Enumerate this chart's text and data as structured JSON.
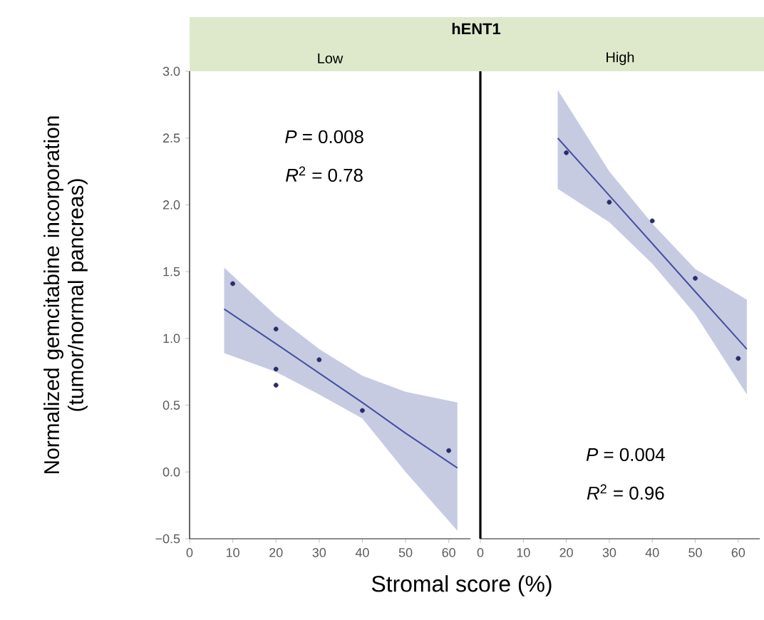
{
  "chart_data": [
    {
      "type": "scatter",
      "title": "hENT1",
      "subtitle": "Low",
      "xlabel": "Stromal score (%)",
      "ylabel": "Normalized gemcitabine incorporation (tumor/normal pancreas)",
      "annotations": [
        "*P* = 0.008",
        "*R*$^{2}$ = 0.78"
      ],
      "xlim": [
        0,
        65
      ],
      "xticks": [
        0,
        10,
        20,
        30,
        40,
        50,
        60
      ],
      "ylim": [
        -0.5,
        3.0
      ],
      "yticks": [
        {
          "value": -0.5,
          "label": "−0.5"
        },
        {
          "value": 0,
          "label": "0.0"
        },
        {
          "value": 0.5,
          "label": "0.5"
        },
        {
          "value": 1,
          "label": "1.0"
        },
        {
          "value": 1.5,
          "label": "1.5"
        },
        {
          "value": 2,
          "label": "2.0"
        },
        {
          "value": 2.5,
          "label": "2.5"
        },
        {
          "value": 3,
          "label": "3.0"
        }
      ],
      "series": [
        {
          "type": "line",
          "color": "#4450a0",
          "x": [
            8,
            20,
            30,
            40,
            50,
            62
          ],
          "values": [
            1.22,
            0.96,
            0.74,
            0.52,
            0.29,
            0.03
          ],
          "lower": [
            0.89,
            0.75,
            0.58,
            0.4,
            0.0,
            -0.44
          ],
          "upper": [
            1.53,
            1.17,
            0.92,
            0.72,
            0.6,
            0.52
          ]
        },
        {
          "color": "#2a2d6a",
          "marker": "circle",
          "x": [
            10,
            20,
            20,
            20,
            30,
            40,
            60
          ],
          "values": [
            1.41,
            1.07,
            0.77,
            0.65,
            0.84,
            0.46,
            0.16
          ]
        }
      ]
    },
    {
      "type": "scatter",
      "subtitle": "High",
      "annotations": [
        "*P* = 0.004",
        "*R*$^{2}$ = 0.96"
      ],
      "tick_labels": "x",
      "xlim": [
        0,
        65
      ],
      "xticks": [
        0,
        10,
        20,
        30,
        40,
        50,
        60
      ],
      "ylim": [
        -0.5,
        3.0
      ],
      "series": [
        {
          "type": "line",
          "color": "#4450a0",
          "x": [
            18,
            30,
            40,
            50,
            62
          ],
          "values": [
            2.5,
            2.07,
            1.71,
            1.35,
            0.92
          ],
          "lower": [
            2.12,
            1.87,
            1.56,
            1.18,
            0.58
          ],
          "upper": [
            2.86,
            2.25,
            1.86,
            1.52,
            1.29
          ]
        },
        {
          "color": "#2a2d6a",
          "marker": "circle",
          "x": [
            20,
            30,
            40,
            50,
            60
          ],
          "values": [
            2.39,
            2.02,
            1.88,
            1.45,
            0.85
          ]
        }
      ]
    }
  ]
}
